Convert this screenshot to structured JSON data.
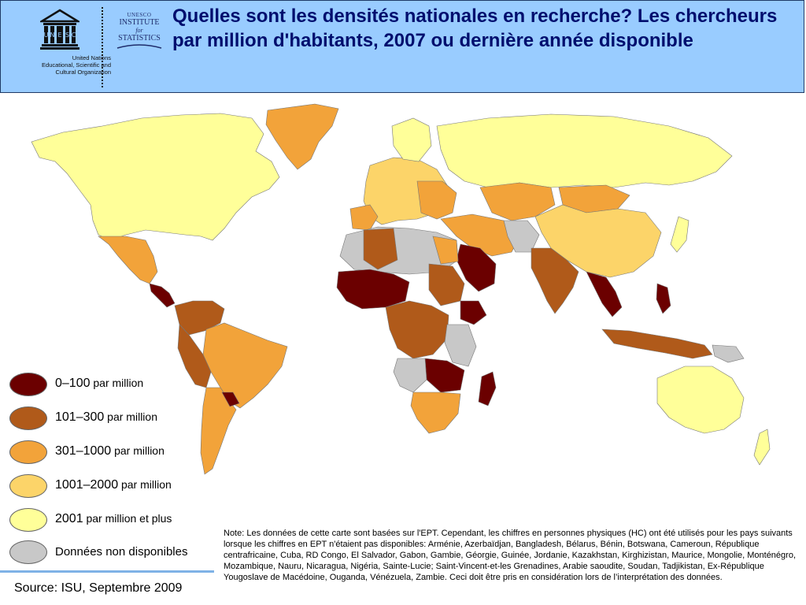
{
  "header": {
    "title": "Quelles sont les densités nationales en recherche? Les chercheurs par million d'habitants, 2007 ou dernière année disponible",
    "unesco_wordmark": "UNESCO",
    "unesco_caption": [
      "United Nations",
      "Educational, Scientific and",
      "Cultural Organization"
    ],
    "uis_logo": {
      "line1": "UNESCO",
      "line2": "INSTITUTE",
      "line3": "for",
      "line4": "STATISTICS"
    }
  },
  "legend": {
    "items": [
      {
        "value": "0–100",
        "unit": " par million",
        "color": "#6b0000"
      },
      {
        "value": "101–300",
        "unit": " par million",
        "color": "#b05a1a"
      },
      {
        "value": "301–1000",
        "unit": " par million",
        "color": "#f2a33a"
      },
      {
        "value": "1001–2000",
        "unit": " par million",
        "color": "#fcd469"
      },
      {
        "value": "2001",
        "unit": " par million et  plus",
        "color": "#ffff99"
      },
      {
        "value": "Données non disponibles",
        "unit": "",
        "color": "#c8c8c8"
      }
    ]
  },
  "note": "Note: Les données de cette carte sont basées sur l'EPT. Cependant, les chiffres en personnes physiques (HC) ont été utilisés pour les pays suivants lorsque les chiffres en EPT n'étaient pas disponibles: Arménie, Azerbaïdjan, Bangladesh, Bélarus, Bénin, Botswana, Cameroun, République centrafricaine, Cuba, RD Congo, El Salvador, Gabon, Gambie, Géorgie, Guinée, Jordanie, Kazakhstan, Kirghizistan, Maurice, Mongolie, Monténégro, Mozambique, Nauru, Nicaragua, Nigéria, Sainte-Lucie; Saint-Vincent-et-les Grenadines, Arabie saoudite, Soudan, Tadjikistan, Ex-République Yougoslave de Macédoine, Ouganda, Vénézuela, Zambie. Ceci doit être pris en considération lors de l’interprétation des données.",
  "source": "Source: ISU, Septembre 2009",
  "colors": {
    "header_bg": "#99ccff",
    "title": "#000e6e",
    "cat_0_100": "#6b0000",
    "cat_101_300": "#b05a1a",
    "cat_301_1000": "#f2a33a",
    "cat_1001_2000": "#fcd469",
    "cat_2001_plus": "#ffff99",
    "no_data": "#c8c8c8"
  }
}
